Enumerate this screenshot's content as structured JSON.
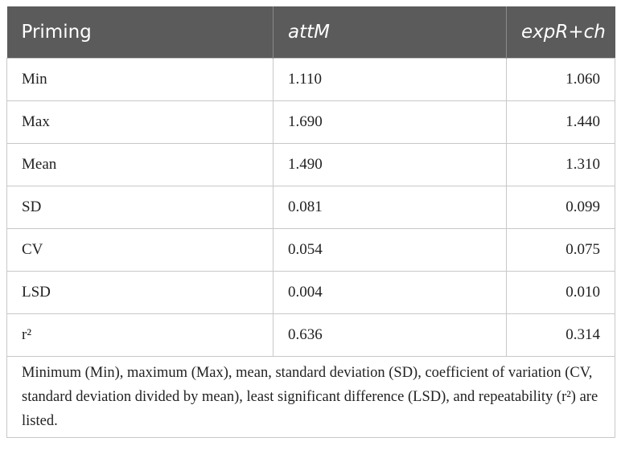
{
  "table": {
    "header": [
      "Priming",
      "attM",
      "expR+ch"
    ],
    "rows": [
      [
        "Min",
        "1.110",
        "1.060"
      ],
      [
        "Max",
        "1.690",
        "1.440"
      ],
      [
        "Mean",
        "1.490",
        "1.310"
      ],
      [
        "SD",
        "0.081",
        "0.099"
      ],
      [
        "CV",
        "0.054",
        "0.075"
      ],
      [
        "LSD",
        "0.004",
        "0.010"
      ],
      [
        "r²",
        "0.636",
        "0.314"
      ]
    ],
    "footnote": "Minimum (Min), maximum (Max), mean, standard deviation (SD), coefficient of variation (CV, standard deviation divided by mean), least significant difference (LSD), and repeatability (r²) are listed."
  }
}
